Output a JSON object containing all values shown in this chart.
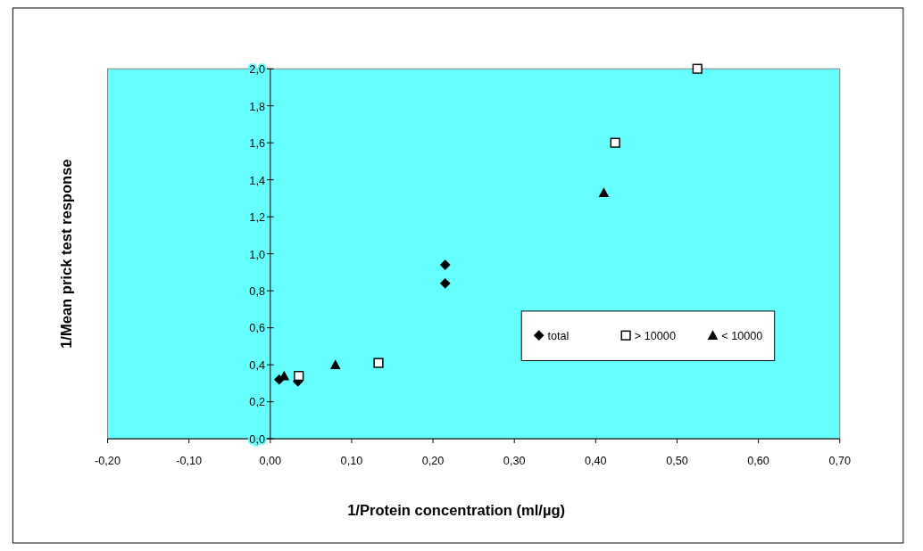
{
  "chart_data": {
    "type": "scatter",
    "xlabel": "1/Protein concentration  (ml/µg)",
    "ylabel": "1/Mean prick test response",
    "xlim": [
      -0.2,
      0.7
    ],
    "ylim": [
      0,
      2
    ],
    "xticks": [
      {
        "value": -0.2,
        "label": "-0,20"
      },
      {
        "value": -0.1,
        "label": "-0,10"
      },
      {
        "value": 0,
        "label": "0,00"
      },
      {
        "value": 0.1,
        "label": "0,10"
      },
      {
        "value": 0.2,
        "label": "0,20"
      },
      {
        "value": 0.3,
        "label": "0,30"
      },
      {
        "value": 0.4,
        "label": "0,40"
      },
      {
        "value": 0.5,
        "label": "0,50"
      },
      {
        "value": 0.6,
        "label": "0,60"
      },
      {
        "value": 0.7,
        "label": "0,70"
      }
    ],
    "yticks": [
      {
        "value": 0,
        "label": "0,0"
      },
      {
        "value": 0.2,
        "label": "0,2"
      },
      {
        "value": 0.4,
        "label": "0,4"
      },
      {
        "value": 0.6,
        "label": "0,6"
      },
      {
        "value": 0.8,
        "label": "0,8"
      },
      {
        "value": 1,
        "label": "1,0"
      },
      {
        "value": 1.2,
        "label": "1,2"
      },
      {
        "value": 1.4,
        "label": "1,4"
      },
      {
        "value": 1.6,
        "label": "1,6"
      },
      {
        "value": 1.8,
        "label": "1,8"
      },
      {
        "value": 2,
        "label": "2,0"
      }
    ],
    "legend": "right",
    "grid": false,
    "series": [
      {
        "name": "total",
        "color": "#000000",
        "marker": "diamond",
        "x": [
          0.011,
          0.034,
          0.215,
          0.215
        ],
        "values": [
          0.32,
          0.31,
          0.94,
          0.84
        ]
      },
      {
        "name": "> 10000",
        "color": "#ffffff",
        "marker": "square",
        "x": [
          0.035,
          0.133,
          0.424,
          0.525
        ],
        "values": [
          0.34,
          0.41,
          1.6,
          2.0
        ]
      },
      {
        "name": "< 10000",
        "color": "#000000",
        "marker": "triangle",
        "x": [
          0.017,
          0.08,
          0.41
        ],
        "values": [
          0.34,
          0.4,
          1.33
        ]
      }
    ]
  }
}
